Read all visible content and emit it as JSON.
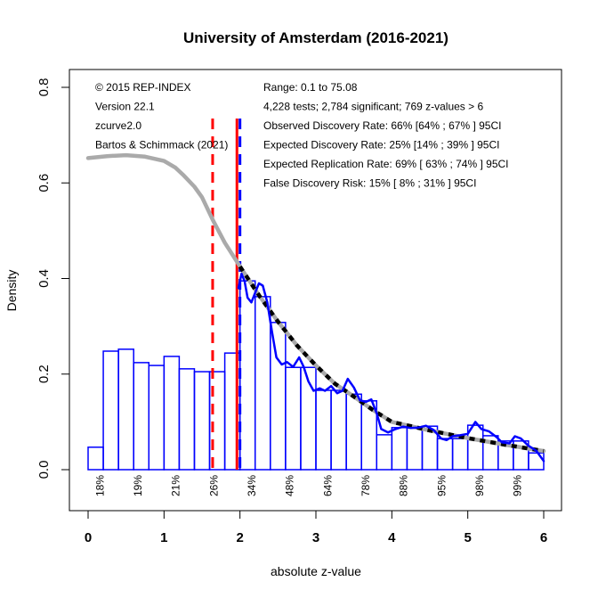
{
  "chart_data": {
    "type": "histogram",
    "title": "University of Amsterdam (2016-2021)",
    "xlabel": "absolute z-value",
    "ylabel": "Density",
    "xlim": [
      0,
      6
    ],
    "ylim": [
      0,
      0.8
    ],
    "xticks": [
      "0",
      "1",
      "2",
      "3",
      "4",
      "5",
      "6"
    ],
    "xtick_values": [
      0,
      1,
      2,
      3,
      4,
      5,
      6
    ],
    "yticks": [
      "0.0",
      "0.2",
      "0.4",
      "0.6",
      "0.8"
    ],
    "ytick_values": [
      0,
      0.2,
      0.4,
      0.6,
      0.8
    ],
    "grid": false,
    "histogram": {
      "bin_width": 0.2,
      "color": "#0000ff",
      "bins": [
        {
          "x0": 0.0,
          "density": 0.047
        },
        {
          "x0": 0.2,
          "density": 0.248
        },
        {
          "x0": 0.4,
          "density": 0.252
        },
        {
          "x0": 0.6,
          "density": 0.224
        },
        {
          "x0": 0.8,
          "density": 0.218
        },
        {
          "x0": 1.0,
          "density": 0.237
        },
        {
          "x0": 1.2,
          "density": 0.211
        },
        {
          "x0": 1.4,
          "density": 0.205
        },
        {
          "x0": 1.6,
          "density": 0.205
        },
        {
          "x0": 1.8,
          "density": 0.244
        },
        {
          "x0": 2.0,
          "density": 0.395
        },
        {
          "x0": 2.2,
          "density": 0.362
        },
        {
          "x0": 2.4,
          "density": 0.308
        },
        {
          "x0": 2.6,
          "density": 0.214
        },
        {
          "x0": 2.8,
          "density": 0.214
        },
        {
          "x0": 3.0,
          "density": 0.166
        },
        {
          "x0": 3.2,
          "density": 0.166
        },
        {
          "x0": 3.4,
          "density": 0.158
        },
        {
          "x0": 3.6,
          "density": 0.144
        },
        {
          "x0": 3.8,
          "density": 0.073
        },
        {
          "x0": 4.0,
          "density": 0.088
        },
        {
          "x0": 4.2,
          "density": 0.088
        },
        {
          "x0": 4.4,
          "density": 0.091
        },
        {
          "x0": 4.6,
          "density": 0.065
        },
        {
          "x0": 4.8,
          "density": 0.065
        },
        {
          "x0": 5.0,
          "density": 0.093
        },
        {
          "x0": 5.2,
          "density": 0.071
        },
        {
          "x0": 5.4,
          "density": 0.06
        },
        {
          "x0": 5.6,
          "density": 0.06
        },
        {
          "x0": 5.8,
          "density": 0.035
        }
      ]
    },
    "series": [
      {
        "name": "model-fit-full",
        "style": "solid",
        "color": "#aaaaaa",
        "x": [
          0,
          0.25,
          0.5,
          0.75,
          1.0,
          1.15,
          1.25,
          1.4,
          1.5,
          1.65,
          1.8,
          2.0,
          2.25,
          2.5,
          2.75,
          3.0,
          3.25,
          3.5,
          3.75,
          4.0,
          4.5,
          5.0,
          5.5,
          6.0
        ],
        "y": [
          0.652,
          0.656,
          0.658,
          0.655,
          0.646,
          0.632,
          0.617,
          0.592,
          0.57,
          0.52,
          0.475,
          0.425,
          0.365,
          0.31,
          0.26,
          0.218,
          0.18,
          0.153,
          0.125,
          0.1,
          0.082,
          0.066,
          0.052,
          0.039
        ]
      },
      {
        "name": "model-fit-significant",
        "style": "dotted",
        "color": "#000000",
        "x": [
          2.0,
          2.25,
          2.5,
          2.75,
          3.0,
          3.25,
          3.5,
          3.75,
          4.0,
          4.5,
          5.0,
          5.5,
          6.0
        ],
        "y": [
          0.425,
          0.365,
          0.31,
          0.26,
          0.218,
          0.18,
          0.153,
          0.125,
          0.1,
          0.082,
          0.066,
          0.052,
          0.039
        ]
      },
      {
        "name": "kernel-density",
        "style": "solid",
        "color": "#0000ff",
        "x": [
          1.98,
          2.02,
          2.06,
          2.1,
          2.15,
          2.2,
          2.25,
          2.3,
          2.36,
          2.42,
          2.48,
          2.55,
          2.62,
          2.7,
          2.78,
          2.84,
          2.9,
          2.97,
          3.05,
          3.12,
          3.2,
          3.28,
          3.35,
          3.42,
          3.5,
          3.58,
          3.66,
          3.73,
          3.8,
          3.86,
          3.95,
          4.05,
          4.15,
          4.25,
          4.35,
          4.45,
          4.55,
          4.65,
          4.72,
          4.8,
          4.9,
          5.0,
          5.1,
          5.18,
          5.28,
          5.38,
          5.45,
          5.55,
          5.62,
          5.7,
          5.8,
          5.9,
          6.0
        ],
        "y": [
          0.38,
          0.41,
          0.395,
          0.36,
          0.35,
          0.37,
          0.39,
          0.385,
          0.35,
          0.29,
          0.235,
          0.22,
          0.225,
          0.215,
          0.235,
          0.215,
          0.185,
          0.165,
          0.17,
          0.165,
          0.175,
          0.16,
          0.165,
          0.19,
          0.172,
          0.145,
          0.142,
          0.147,
          0.118,
          0.085,
          0.078,
          0.085,
          0.09,
          0.087,
          0.088,
          0.092,
          0.083,
          0.065,
          0.062,
          0.07,
          0.072,
          0.075,
          0.1,
          0.085,
          0.08,
          0.068,
          0.057,
          0.055,
          0.07,
          0.065,
          0.05,
          0.04,
          0.018
        ]
      }
    ],
    "vlines": [
      {
        "name": "edr-line",
        "x": 1.64,
        "color": "#ff0000",
        "style": "dashed"
      },
      {
        "name": "significance-line",
        "x": 1.96,
        "color": "#ff0000",
        "style": "solid"
      },
      {
        "name": "selection-line",
        "x": 2.0,
        "color": "#0000ff",
        "style": "dashed"
      }
    ],
    "power_labels": [
      {
        "x": 0.25,
        "label": "18%"
      },
      {
        "x": 0.75,
        "label": "19%"
      },
      {
        "x": 1.25,
        "label": "21%"
      },
      {
        "x": 1.75,
        "label": "26%"
      },
      {
        "x": 2.25,
        "label": "34%"
      },
      {
        "x": 2.75,
        "label": "48%"
      },
      {
        "x": 3.25,
        "label": "64%"
      },
      {
        "x": 3.75,
        "label": "78%"
      },
      {
        "x": 4.25,
        "label": "88%"
      },
      {
        "x": 4.75,
        "label": "95%"
      },
      {
        "x": 5.25,
        "label": "98%"
      },
      {
        "x": 5.75,
        "label": "99%"
      }
    ],
    "annotations_left": [
      "© 2015 REP-INDEX",
      "Version 22.1",
      "zcurve2.0",
      "Bartos & Schimmack (2021)"
    ],
    "annotations_right": [
      "Range: 0.1 to 75.08",
      "4,228 tests; 2,784 significant; 769 z-values > 6",
      "Observed Discovery Rate: 66% [64% ; 67% ] 95CI",
      "Expected Discovery Rate: 25% [14% ; 39% ] 95CI",
      "Expected Replication Rate: 69% [ 63% ; 74% ] 95CI",
      "False Discovery Risk: 15% [ 8% ; 31% ] 95CI"
    ]
  }
}
